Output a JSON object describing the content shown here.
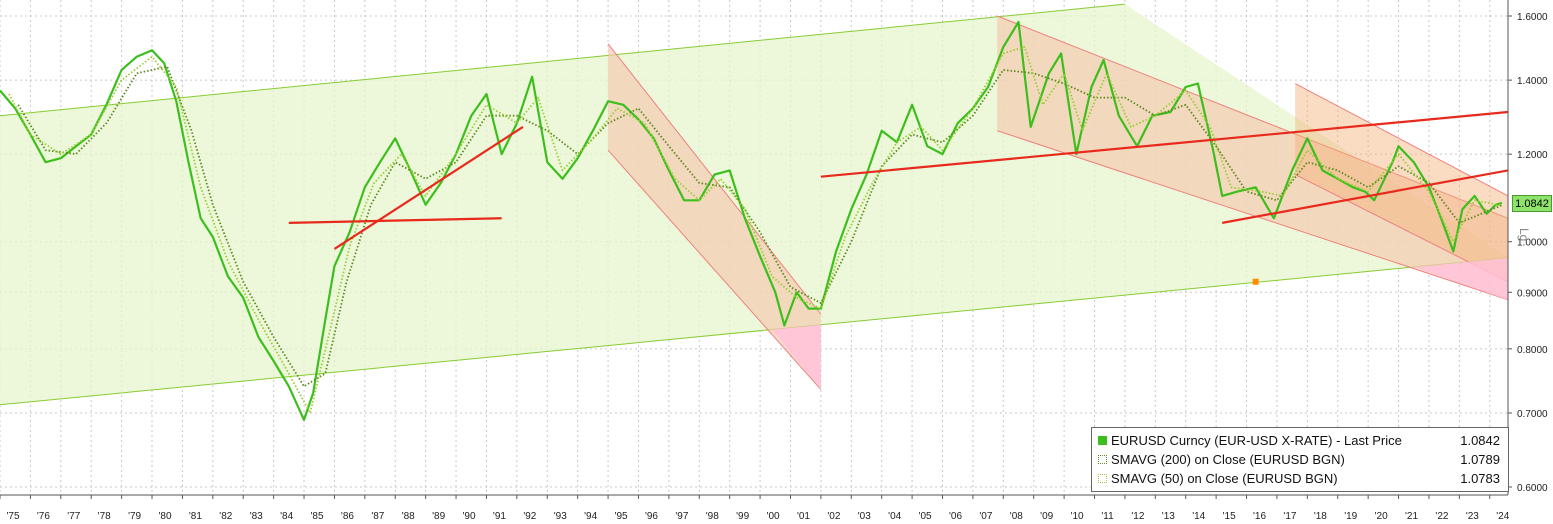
{
  "chart_data": {
    "type": "line",
    "title": "",
    "y_scale": "log",
    "ylim": [
      0.6,
      1.62
    ],
    "y_ticks": [
      0.6,
      0.7,
      0.8,
      0.9,
      1.0,
      1.2,
      1.4,
      1.6
    ],
    "y_tick_labels": [
      "0.6000",
      "0.7000",
      "0.8000",
      "0.9000",
      "1.0000",
      "1.2000",
      "1.4000",
      "1.6000"
    ],
    "x_range": [
      1975,
      2024.6
    ],
    "x_tick_labels": [
      "'75",
      "'76",
      "'77",
      "'78",
      "'79",
      "'80",
      "'81",
      "'82",
      "'83",
      "'84",
      "'85",
      "'86",
      "'87",
      "'88",
      "'89",
      "'90",
      "'91",
      "'92",
      "'93",
      "'94",
      "'95",
      "'96",
      "'97",
      "'98",
      "'99",
      "'00",
      "'01",
      "'02",
      "'03",
      "'04",
      "'05",
      "'06",
      "'07",
      "'08",
      "'09",
      "'10",
      "'11",
      "'12",
      "'13",
      "'14",
      "'15",
      "'16",
      "'17",
      "'18",
      "'19",
      "'20",
      "'21",
      "'22",
      "'23",
      "'24"
    ],
    "scale_label": "Lg",
    "last_value_badge": "1.0842",
    "grid": true,
    "legend_placement": "bottom-right",
    "series": [
      {
        "name": "EURUSD Curncy (EUR-USD X-RATE) - Last Price",
        "last_value": "1.0842",
        "color": "#3cbf1c",
        "points": [
          [
            1975.0,
            1.37
          ],
          [
            1975.5,
            1.32
          ],
          [
            1976.0,
            1.25
          ],
          [
            1976.5,
            1.18
          ],
          [
            1977.0,
            1.19
          ],
          [
            1977.5,
            1.22
          ],
          [
            1978.0,
            1.25
          ],
          [
            1978.5,
            1.33
          ],
          [
            1979.0,
            1.43
          ],
          [
            1979.5,
            1.47
          ],
          [
            1980.0,
            1.49
          ],
          [
            1980.4,
            1.45
          ],
          [
            1980.8,
            1.34
          ],
          [
            1981.2,
            1.18
          ],
          [
            1981.6,
            1.05
          ],
          [
            1982.0,
            1.01
          ],
          [
            1982.5,
            0.93
          ],
          [
            1983.0,
            0.89
          ],
          [
            1983.5,
            0.82
          ],
          [
            1984.0,
            0.78
          ],
          [
            1984.5,
            0.74
          ],
          [
            1985.0,
            0.69
          ],
          [
            1985.3,
            0.73
          ],
          [
            1985.7,
            0.85
          ],
          [
            1986.0,
            0.95
          ],
          [
            1986.5,
            1.02
          ],
          [
            1987.0,
            1.12
          ],
          [
            1987.5,
            1.18
          ],
          [
            1988.0,
            1.24
          ],
          [
            1988.5,
            1.16
          ],
          [
            1989.0,
            1.08
          ],
          [
            1989.5,
            1.13
          ],
          [
            1990.0,
            1.2
          ],
          [
            1990.5,
            1.3
          ],
          [
            1991.0,
            1.36
          ],
          [
            1991.5,
            1.2
          ],
          [
            1992.0,
            1.28
          ],
          [
            1992.5,
            1.41
          ],
          [
            1993.0,
            1.18
          ],
          [
            1993.5,
            1.14
          ],
          [
            1994.0,
            1.19
          ],
          [
            1994.5,
            1.26
          ],
          [
            1995.0,
            1.34
          ],
          [
            1995.5,
            1.33
          ],
          [
            1996.0,
            1.29
          ],
          [
            1996.5,
            1.24
          ],
          [
            1997.0,
            1.16
          ],
          [
            1997.5,
            1.09
          ],
          [
            1998.0,
            1.09
          ],
          [
            1998.5,
            1.15
          ],
          [
            1999.0,
            1.16
          ],
          [
            1999.5,
            1.05
          ],
          [
            2000.0,
            0.97
          ],
          [
            2000.5,
            0.9
          ],
          [
            2000.8,
            0.84
          ],
          [
            2001.2,
            0.9
          ],
          [
            2001.6,
            0.87
          ],
          [
            2002.0,
            0.87
          ],
          [
            2002.5,
            0.98
          ],
          [
            2003.0,
            1.07
          ],
          [
            2003.5,
            1.15
          ],
          [
            2004.0,
            1.26
          ],
          [
            2004.5,
            1.23
          ],
          [
            2005.0,
            1.33
          ],
          [
            2005.5,
            1.22
          ],
          [
            2006.0,
            1.2
          ],
          [
            2006.5,
            1.28
          ],
          [
            2007.0,
            1.32
          ],
          [
            2007.5,
            1.38
          ],
          [
            2008.0,
            1.5
          ],
          [
            2008.5,
            1.58
          ],
          [
            2008.9,
            1.27
          ],
          [
            2009.5,
            1.42
          ],
          [
            2009.9,
            1.48
          ],
          [
            2010.4,
            1.2
          ],
          [
            2010.9,
            1.38
          ],
          [
            2011.3,
            1.46
          ],
          [
            2011.8,
            1.3
          ],
          [
            2012.4,
            1.22
          ],
          [
            2012.9,
            1.3
          ],
          [
            2013.5,
            1.31
          ],
          [
            2014.0,
            1.38
          ],
          [
            2014.4,
            1.39
          ],
          [
            2014.9,
            1.21
          ],
          [
            2015.2,
            1.1
          ],
          [
            2015.7,
            1.11
          ],
          [
            2016.3,
            1.12
          ],
          [
            2016.9,
            1.05
          ],
          [
            2017.5,
            1.16
          ],
          [
            2018.0,
            1.24
          ],
          [
            2018.5,
            1.16
          ],
          [
            2019.0,
            1.14
          ],
          [
            2019.5,
            1.12
          ],
          [
            2019.9,
            1.11
          ],
          [
            2020.2,
            1.09
          ],
          [
            2020.8,
            1.18
          ],
          [
            2021.0,
            1.22
          ],
          [
            2021.5,
            1.18
          ],
          [
            2022.0,
            1.12
          ],
          [
            2022.4,
            1.05
          ],
          [
            2022.8,
            0.98
          ],
          [
            2023.1,
            1.07
          ],
          [
            2023.5,
            1.1
          ],
          [
            2023.9,
            1.06
          ],
          [
            2024.2,
            1.08
          ],
          [
            2024.4,
            1.0842
          ]
        ]
      },
      {
        "name": "SMAVG (200) on Close (EURUSD BGN)",
        "last_value": "1.0789",
        "color": "#5c8a1e",
        "points": [
          [
            1975.6,
            1.33
          ],
          [
            1976.5,
            1.21
          ],
          [
            1977.5,
            1.2
          ],
          [
            1978.5,
            1.28
          ],
          [
            1979.5,
            1.42
          ],
          [
            1980.5,
            1.44
          ],
          [
            1981.3,
            1.26
          ],
          [
            1982.0,
            1.08
          ],
          [
            1983.0,
            0.92
          ],
          [
            1984.0,
            0.82
          ],
          [
            1985.0,
            0.74
          ],
          [
            1985.7,
            0.76
          ],
          [
            1986.4,
            0.92
          ],
          [
            1987.2,
            1.08
          ],
          [
            1988.0,
            1.18
          ],
          [
            1989.0,
            1.14
          ],
          [
            1990.0,
            1.18
          ],
          [
            1991.0,
            1.3
          ],
          [
            1992.0,
            1.3
          ],
          [
            1993.0,
            1.26
          ],
          [
            1994.0,
            1.2
          ],
          [
            1995.0,
            1.28
          ],
          [
            1996.0,
            1.32
          ],
          [
            1997.0,
            1.22
          ],
          [
            1998.0,
            1.13
          ],
          [
            1999.0,
            1.12
          ],
          [
            2000.0,
            1.02
          ],
          [
            2001.0,
            0.91
          ],
          [
            2002.0,
            0.88
          ],
          [
            2003.0,
            1.0
          ],
          [
            2004.0,
            1.17
          ],
          [
            2005.0,
            1.25
          ],
          [
            2006.0,
            1.23
          ],
          [
            2007.0,
            1.3
          ],
          [
            2008.0,
            1.43
          ],
          [
            2009.0,
            1.42
          ],
          [
            2010.0,
            1.39
          ],
          [
            2011.0,
            1.35
          ],
          [
            2012.0,
            1.35
          ],
          [
            2013.0,
            1.3
          ],
          [
            2014.0,
            1.33
          ],
          [
            2015.0,
            1.22
          ],
          [
            2016.0,
            1.11
          ],
          [
            2017.0,
            1.09
          ],
          [
            2018.0,
            1.18
          ],
          [
            2019.0,
            1.16
          ],
          [
            2020.0,
            1.12
          ],
          [
            2021.0,
            1.17
          ],
          [
            2022.0,
            1.13
          ],
          [
            2023.0,
            1.04
          ],
          [
            2024.4,
            1.0789
          ]
        ]
      },
      {
        "name": "SMAVG (50) on Close (EURUSD BGN)",
        "last_value": "1.0783",
        "color": "#9acd32",
        "points": [
          [
            1975.3,
            1.36
          ],
          [
            1976.0,
            1.25
          ],
          [
            1977.0,
            1.2
          ],
          [
            1978.0,
            1.25
          ],
          [
            1979.0,
            1.4
          ],
          [
            1980.0,
            1.47
          ],
          [
            1980.8,
            1.38
          ],
          [
            1981.6,
            1.12
          ],
          [
            1982.5,
            0.96
          ],
          [
            1983.5,
            0.85
          ],
          [
            1984.5,
            0.76
          ],
          [
            1985.2,
            0.7
          ],
          [
            1985.8,
            0.82
          ],
          [
            1986.5,
            0.99
          ],
          [
            1987.3,
            1.13
          ],
          [
            1988.2,
            1.2
          ],
          [
            1989.0,
            1.1
          ],
          [
            1990.0,
            1.2
          ],
          [
            1991.0,
            1.33
          ],
          [
            1992.0,
            1.28
          ],
          [
            1992.7,
            1.35
          ],
          [
            1993.5,
            1.16
          ],
          [
            1994.5,
            1.24
          ],
          [
            1995.3,
            1.32
          ],
          [
            1996.2,
            1.28
          ],
          [
            1997.2,
            1.14
          ],
          [
            1998.0,
            1.09
          ],
          [
            1998.7,
            1.14
          ],
          [
            1999.5,
            1.07
          ],
          [
            2000.4,
            0.93
          ],
          [
            2001.2,
            0.89
          ],
          [
            2002.0,
            0.87
          ],
          [
            2002.8,
            1.01
          ],
          [
            2003.7,
            1.13
          ],
          [
            2004.5,
            1.23
          ],
          [
            2005.3,
            1.27
          ],
          [
            2006.0,
            1.21
          ],
          [
            2007.0,
            1.32
          ],
          [
            2008.0,
            1.48
          ],
          [
            2008.7,
            1.5
          ],
          [
            2009.3,
            1.33
          ],
          [
            2010.0,
            1.42
          ],
          [
            2010.6,
            1.26
          ],
          [
            2011.4,
            1.42
          ],
          [
            2012.2,
            1.27
          ],
          [
            2013.0,
            1.3
          ],
          [
            2014.0,
            1.37
          ],
          [
            2014.8,
            1.27
          ],
          [
            2015.5,
            1.12
          ],
          [
            2016.5,
            1.11
          ],
          [
            2017.2,
            1.1
          ],
          [
            2018.0,
            1.21
          ],
          [
            2019.0,
            1.14
          ],
          [
            2020.0,
            1.11
          ],
          [
            2021.0,
            1.2
          ],
          [
            2022.0,
            1.11
          ],
          [
            2022.8,
            1.0
          ],
          [
            2023.5,
            1.09
          ],
          [
            2024.4,
            1.0783
          ]
        ]
      }
    ],
    "annotations": {
      "long_term_channel": {
        "color": "#e6f5cc",
        "line_color": "#88cc33",
        "upper": [
          [
            1975.0,
            1.3
          ],
          [
            2012.0,
            1.64
          ]
        ],
        "lower": [
          [
            1975.0,
            0.712
          ],
          [
            2024.6,
            0.967
          ]
        ]
      },
      "falling_channels": [
        {
          "upper": [
            [
              1995.0,
              1.51
            ],
            [
              2002.0,
              0.86
            ]
          ],
          "lower": [
            [
              1995.0,
              1.21
            ],
            [
              2002.0,
              0.735
            ]
          ]
        },
        {
          "upper": [
            [
              2007.8,
              1.6
            ],
            [
              2024.6,
              1.05
            ]
          ],
          "lower": [
            [
              2007.8,
              1.26
            ],
            [
              2024.6,
              0.886
            ]
          ]
        },
        {
          "upper": [
            [
              2017.6,
              1.39
            ],
            [
              2024.6,
              1.1
            ]
          ],
          "lower": [
            [
              2017.6,
              1.15
            ],
            [
              2024.6,
              0.92
            ]
          ]
        }
      ],
      "trend_lines": [
        {
          "points": [
            [
              1984.5,
              1.04
            ],
            [
              1991.5,
              1.05
            ]
          ]
        },
        {
          "points": [
            [
              1986.0,
              0.985
            ],
            [
              1992.2,
              1.27
            ]
          ]
        },
        {
          "points": [
            [
              2002.0,
              1.145
            ],
            [
              2024.6,
              1.31
            ]
          ]
        },
        {
          "points": [
            [
              2015.2,
              1.04
            ],
            [
              2024.6,
              1.16
            ]
          ]
        }
      ],
      "marker": {
        "x": 2016.3,
        "y": 0.92,
        "color": "#ff8c00"
      }
    }
  }
}
